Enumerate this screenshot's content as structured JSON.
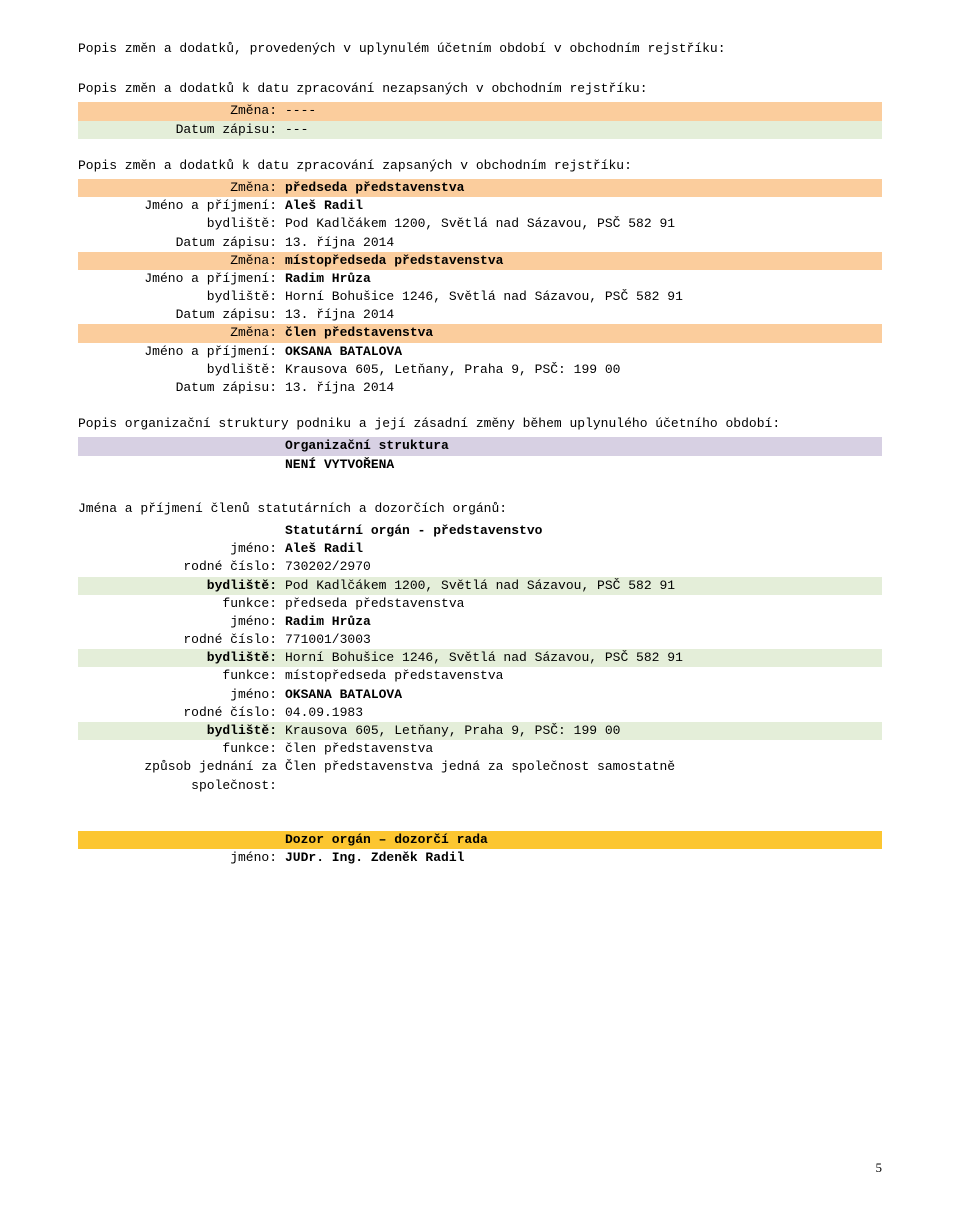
{
  "section1": {
    "heading": "Popis změn a dodatků, provedených v uplynulém účetním období v obchodním rejstříku:"
  },
  "section2": {
    "heading": "Popis změn a dodatků k datu zpracování nezapsaných v obchodním rejstříku:",
    "rows": [
      {
        "label": "Změna:",
        "value": "----",
        "hl": "hl-orange"
      },
      {
        "label": "Datum zápisu:",
        "value": "---",
        "hl": "hl-green"
      }
    ]
  },
  "section3": {
    "heading": "Popis změn a dodatků k datu zpracování zapsaných v obchodním rejstříku:",
    "entries": [
      {
        "rows": [
          {
            "label": "Změna:",
            "value": "předseda představenstva",
            "bold": true,
            "hl": "hl-orange"
          },
          {
            "label": "Jméno a příjmení:",
            "value": "Aleš Radil",
            "bold": true
          },
          {
            "label": "bydliště:",
            "value": "Pod Kadlčákem 1200, Světlá nad Sázavou, PSČ 582 91"
          },
          {
            "label": "Datum zápisu:",
            "value": "13. října 2014"
          }
        ]
      },
      {
        "rows": [
          {
            "label": "Změna:",
            "value": "místopředseda představenstva",
            "bold": true,
            "hl": "hl-orange"
          },
          {
            "label": "Jméno a příjmení:",
            "value": "Radim Hrůza",
            "bold": true
          },
          {
            "label": "bydliště:",
            "value": "Horní Bohušice 1246, Světlá nad Sázavou, PSČ 582 91"
          },
          {
            "label": "Datum zápisu:",
            "value": "13. října 2014"
          }
        ]
      },
      {
        "rows": [
          {
            "label": "Změna:",
            "value": "člen představenstva",
            "bold": true,
            "hl": "hl-orange"
          },
          {
            "label": "Jméno a příjmení:",
            "value": "OKSANA BATALOVA",
            "bold": true
          },
          {
            "label": "bydliště:",
            "value": "Krausova 605, Letňany, Praha 9, PSČ: 199 00"
          },
          {
            "label": "Datum zápisu:",
            "value": "13. října 2014"
          }
        ]
      }
    ]
  },
  "section4": {
    "heading": "Popis organizační struktury podniku a její zásadní změny během uplynulého účetního období:",
    "title": "Organizační struktura",
    "body": "NENÍ VYTVOŘENA"
  },
  "section5": {
    "heading": "Jména a příjmení členů statutárních a dozorčích orgánů:",
    "sub_heading": "Statutární orgán - představenstvo",
    "people": [
      {
        "rows": [
          {
            "label": "jméno:",
            "value": "Aleš Radil",
            "bold": true
          },
          {
            "label": "rodné číslo:",
            "value": "730202/2970"
          },
          {
            "label": "bydliště:",
            "value": "Pod Kadlčákem 1200, Světlá nad Sázavou, PSČ 582 91",
            "lbold": true,
            "hl": "hl-green"
          },
          {
            "label": "funkce:",
            "value": "předseda představenstva"
          }
        ]
      },
      {
        "rows": [
          {
            "label": "jméno:",
            "value": "Radim Hrůza",
            "bold": true
          },
          {
            "label": "rodné číslo:",
            "value": "771001/3003"
          },
          {
            "label": "bydliště:",
            "value": "Horní Bohušice 1246, Světlá nad Sázavou, PSČ 582 91",
            "lbold": true,
            "hl": "hl-green"
          },
          {
            "label": "funkce:",
            "value": "místopředseda představenstva"
          }
        ]
      },
      {
        "rows": [
          {
            "label": "jméno:",
            "value": "OKSANA BATALOVA",
            "bold": true
          },
          {
            "label": "rodné číslo:",
            "value": "04.09.1983"
          },
          {
            "label": "bydliště:",
            "value": "Krausova 605, Letňany, Praha 9, PSČ: 199 00",
            "lbold": true,
            "hl": "hl-green"
          },
          {
            "label": "funkce:",
            "value": "člen představenstva"
          }
        ]
      }
    ],
    "jednani": {
      "label": "způsob jednání za společnost:",
      "label1": "způsob jednání za",
      "label2": "společnost:",
      "value": "Člen představenstva jedná za společnost samostatně"
    }
  },
  "section6": {
    "title": "Dozor orgán – dozorčí rada",
    "rows": [
      {
        "label": "jméno:",
        "value": "JUDr. Ing. Zdeněk Radil",
        "bold": true
      }
    ]
  },
  "page_number": "5"
}
